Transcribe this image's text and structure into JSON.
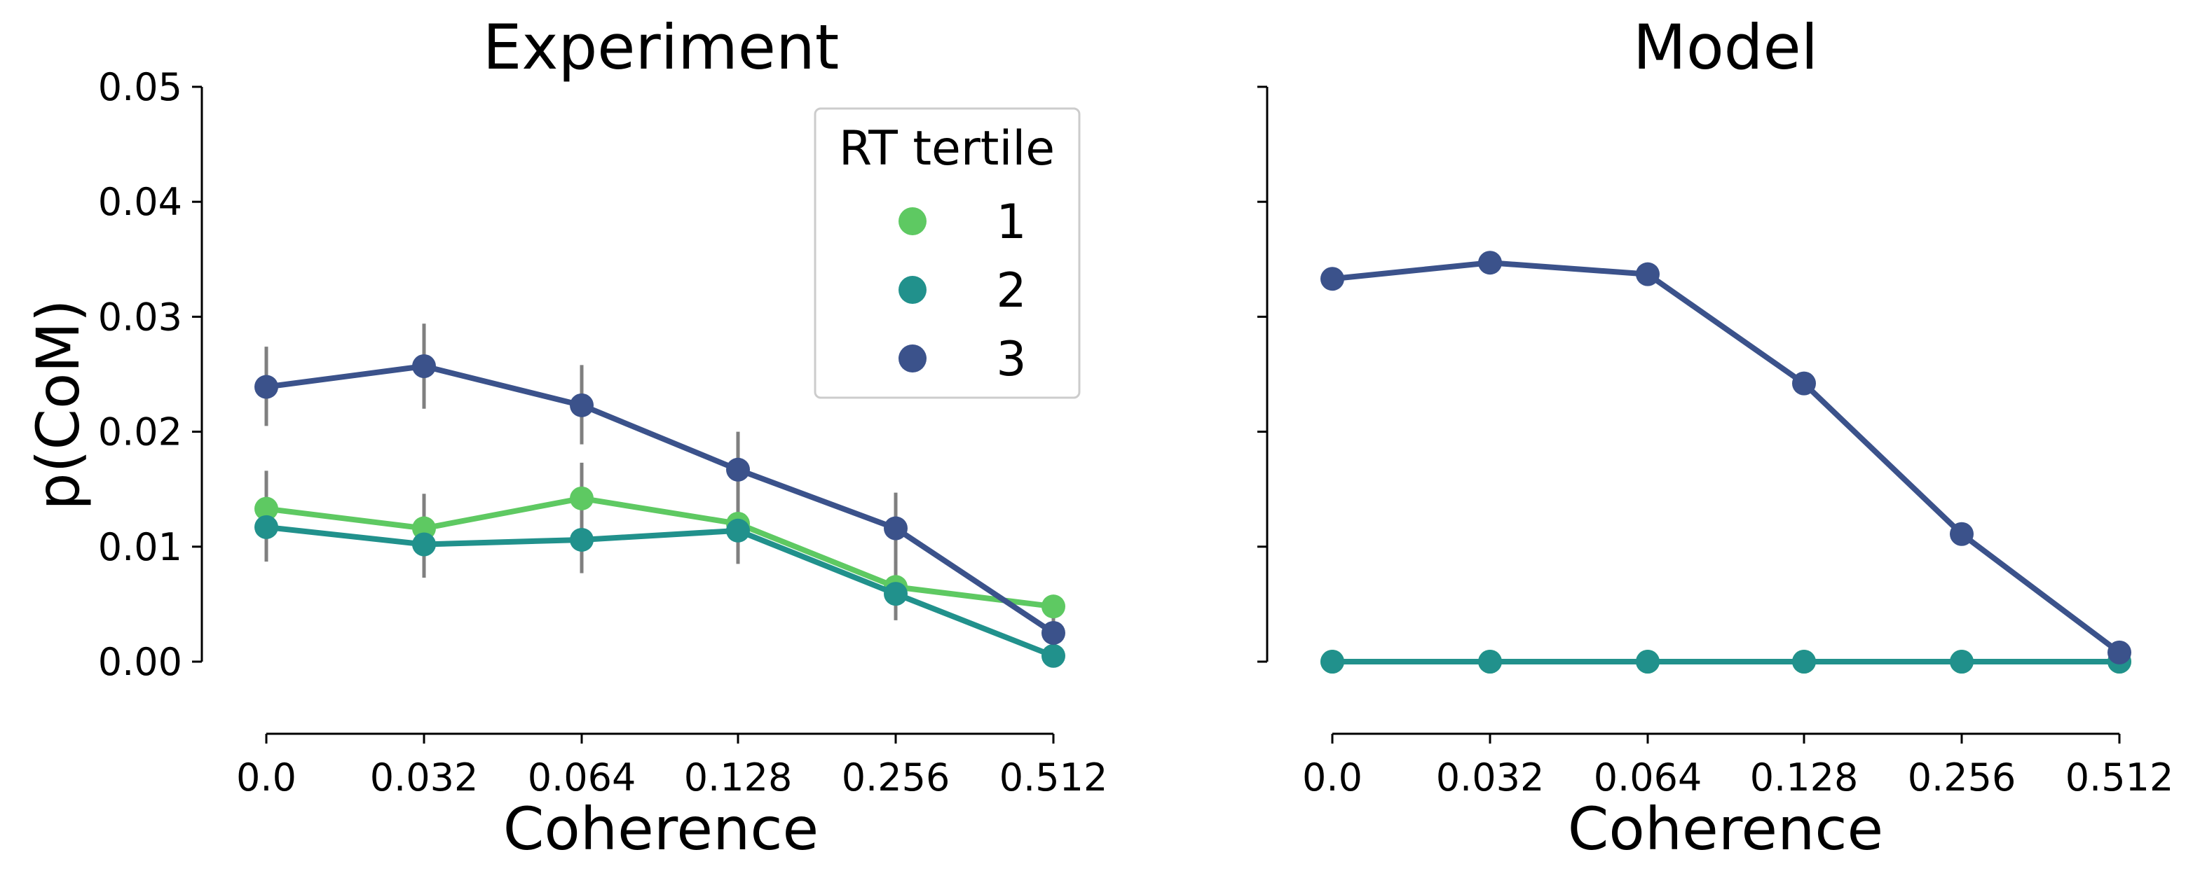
{
  "chart_data": [
    {
      "type": "line",
      "title": "Experiment",
      "xlabel": "Coherence",
      "ylabel": "p(CoM)",
      "categories": [
        "0.0",
        "0.032",
        "0.064",
        "0.128",
        "0.256",
        "0.512"
      ],
      "ylim": [
        0,
        0.05
      ],
      "yticks": [
        "0.00",
        "0.01",
        "0.02",
        "0.03",
        "0.04",
        "0.05"
      ],
      "grid": false,
      "legend": {
        "title": "RT tertile",
        "placement": "top-right",
        "entries": [
          "1",
          "2",
          "3"
        ]
      },
      "series": [
        {
          "name": "1",
          "color": "#5ec962",
          "values": [
            0.0133,
            0.0116,
            0.0142,
            0.012,
            0.0065,
            0.0048
          ],
          "err_low": [
            0.0101,
            0.0087,
            0.0111,
            0.009,
            0.0042,
            0.0038
          ],
          "err_high": [
            0.0166,
            0.0146,
            0.0173,
            0.0151,
            0.0089,
            0.0058
          ]
        },
        {
          "name": "2",
          "color": "#21918c",
          "values": [
            0.0117,
            0.0102,
            0.0106,
            0.0114,
            0.0059,
            0.0005
          ],
          "err_low": [
            0.0087,
            0.0073,
            0.0077,
            0.0085,
            0.0036,
            0.0001
          ],
          "err_high": [
            0.0148,
            0.0132,
            0.0137,
            0.0144,
            0.0083,
            0.0011
          ]
        },
        {
          "name": "3",
          "color": "#3b528b",
          "values": [
            0.0239,
            0.0257,
            0.0223,
            0.0167,
            0.0116,
            0.0025
          ],
          "err_low": [
            0.0205,
            0.022,
            0.0189,
            0.0134,
            0.0086,
            0.0012
          ],
          "err_high": [
            0.0274,
            0.0294,
            0.0258,
            0.02,
            0.0147,
            0.004
          ]
        }
      ]
    },
    {
      "type": "line",
      "title": "Model",
      "xlabel": "Coherence",
      "ylabel": "",
      "categories": [
        "0.0",
        "0.032",
        "0.064",
        "0.128",
        "0.256",
        "0.512"
      ],
      "ylim": [
        0,
        0.05
      ],
      "yticks": [
        "",
        "",
        "",
        "",
        "",
        ""
      ],
      "grid": false,
      "series": [
        {
          "name": "1",
          "color": "#5ec962",
          "values": [
            0.0,
            0.0,
            0.0,
            0.0,
            0.0,
            0.0
          ]
        },
        {
          "name": "2",
          "color": "#21918c",
          "values": [
            0.0,
            0.0,
            0.0,
            0.0,
            0.0,
            0.0
          ]
        },
        {
          "name": "3",
          "color": "#3b528b",
          "values": [
            0.0333,
            0.0347,
            0.0337,
            0.0242,
            0.0111,
            0.0008
          ]
        }
      ]
    }
  ]
}
